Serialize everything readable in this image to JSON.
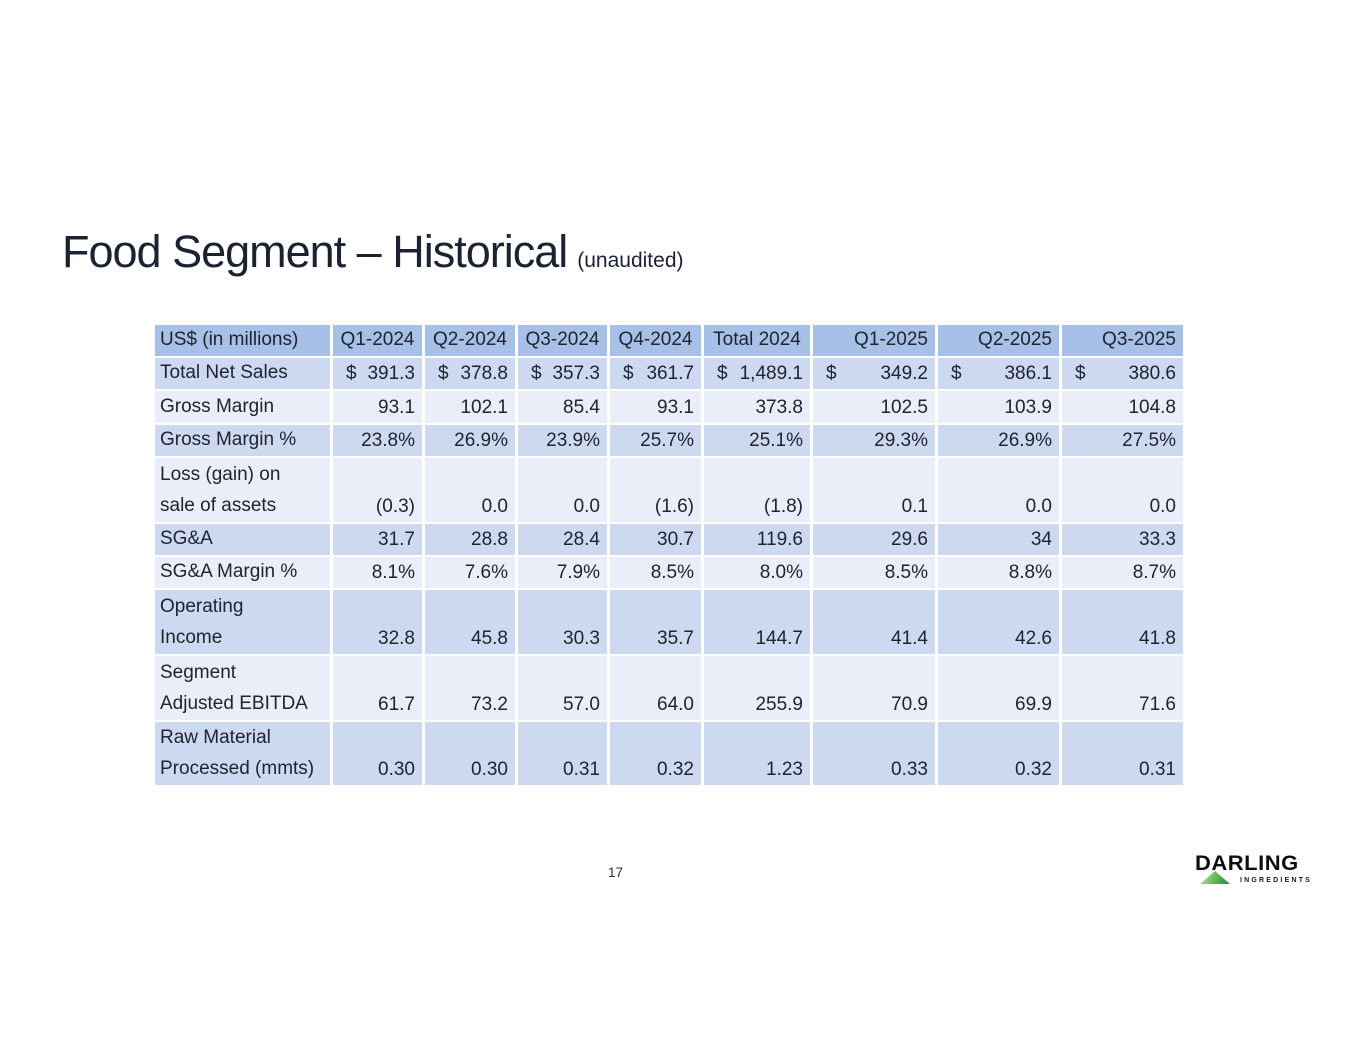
{
  "slide": {
    "title": "Food Segment – Historical",
    "title_suffix": "(unaudited)",
    "page_number": "17"
  },
  "table": {
    "columns": [
      "US$ (in millions)",
      "Q1-2024",
      "Q2-2024",
      "Q3-2024",
      "Q4-2024",
      "Total 2024",
      "Q1-2025",
      "Q2-2025",
      "Q3-2025"
    ],
    "rows": [
      {
        "label": "Total Net Sales",
        "currency": true,
        "values": [
          "391.3",
          "378.8",
          "357.3",
          "361.7",
          "1,489.1",
          "349.2",
          "386.1",
          "380.6"
        ]
      },
      {
        "label": "Gross Margin",
        "values": [
          "93.1",
          "102.1",
          "85.4",
          "93.1",
          "373.8",
          "102.5",
          "103.9",
          "104.8"
        ]
      },
      {
        "label": "Gross Margin %",
        "values": [
          "23.8%",
          "26.9%",
          "23.9%",
          "25.7%",
          "25.1%",
          "29.3%",
          "26.9%",
          "27.5%"
        ]
      },
      {
        "label": "Loss (gain) on sale of assets",
        "label_lines": [
          "Loss (gain) on",
          "sale of assets"
        ],
        "values": [
          "(0.3)",
          "0.0",
          "0.0",
          "(1.6)",
          "(1.8)",
          "0.1",
          "0.0",
          "0.0"
        ]
      },
      {
        "label": "SG&A",
        "values": [
          "31.7",
          "28.8",
          "28.4",
          "30.7",
          "119.6",
          "29.6",
          "34",
          "33.3"
        ]
      },
      {
        "label": "SG&A Margin %",
        "values": [
          "8.1%",
          "7.6%",
          "7.9%",
          "8.5%",
          "8.0%",
          "8.5%",
          "8.8%",
          "8.7%"
        ]
      },
      {
        "label": "Operating Income",
        "label_lines": [
          "Operating",
          "Income"
        ],
        "values": [
          "32.8",
          "45.8",
          "30.3",
          "35.7",
          "144.7",
          "41.4",
          "42.6",
          "41.8"
        ]
      },
      {
        "label": "Segment Adjusted EBITDA",
        "label_lines": [
          "Segment",
          "Adjusted EBITDA"
        ],
        "values": [
          "61.7",
          "73.2",
          "57.0",
          "64.0",
          "255.9",
          "70.9",
          "69.9",
          "71.6"
        ]
      },
      {
        "label": "Raw Material Processed (mmts)",
        "label_lines": [
          "Raw Material",
          "Processed (mmts)"
        ],
        "values": [
          "0.30",
          "0.30",
          "0.31",
          "0.32",
          "1.23",
          "0.33",
          "0.32",
          "0.31"
        ]
      }
    ],
    "currency_symbol": "$"
  },
  "logo": {
    "brand": "DARLING",
    "sub": "INGREDIENTS"
  },
  "colors": {
    "header_bg": "#a7c0e7",
    "row_alt_bg": "#ccd9f0",
    "row_bg": "#eaeef8",
    "text": "#20242f",
    "title": "#1b2231",
    "logo_green_light": "#cdeec6",
    "logo_green_dark": "#1d8a3c"
  }
}
